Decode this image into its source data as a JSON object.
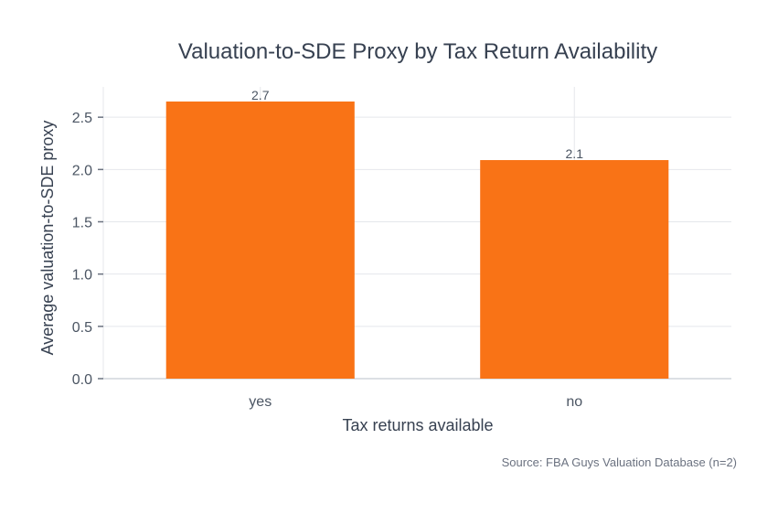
{
  "chart_data": {
    "type": "bar",
    "title": "Valuation-to-SDE Proxy by Tax Return Availability",
    "xlabel": "Tax returns available",
    "ylabel": "Average valuation-to-SDE proxy",
    "categories": [
      "yes",
      "no"
    ],
    "values": [
      2.65,
      2.09
    ],
    "data_labels": [
      "2.7",
      "2.1"
    ],
    "ylim": [
      0,
      2.79
    ],
    "yticks": [
      0,
      0.5,
      1,
      1.5,
      2,
      2.5
    ],
    "ytick_labels": [
      "0.0",
      "0.5",
      "1.0",
      "1.5",
      "2.0",
      "2.5"
    ],
    "grid": true,
    "bar_color": "#f97316",
    "source": "Source: FBA Guys Valuation Database (n=2)"
  }
}
